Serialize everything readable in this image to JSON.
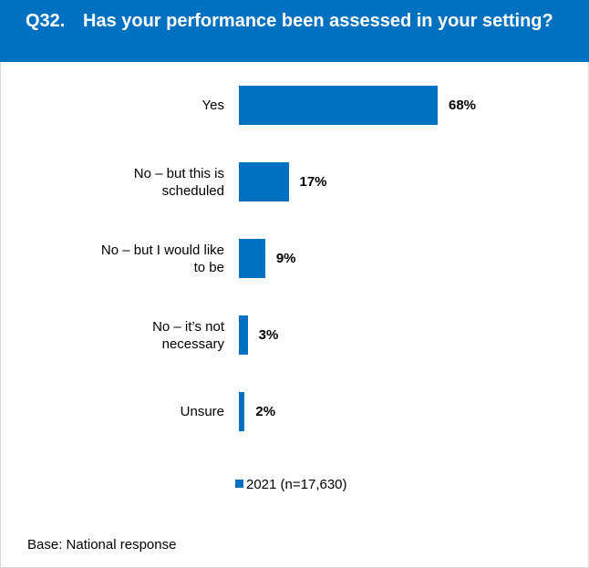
{
  "header": {
    "question_number": "Q32.",
    "question_text": "Has your performance been assessed in your setting?"
  },
  "chart_data": {
    "type": "bar",
    "orientation": "horizontal",
    "categories": [
      "Yes",
      "No – but this is scheduled",
      "No – but I would like to be",
      "No – it’s not necessary",
      "Unsure"
    ],
    "category_lines": [
      [
        "Yes"
      ],
      [
        "No – but this is",
        "scheduled"
      ],
      [
        "No – but I would like",
        "to be"
      ],
      [
        "No – it’s not",
        "necessary"
      ],
      [
        "Unsure"
      ]
    ],
    "series": [
      {
        "name": "2021 (n=17,630)",
        "values": [
          68,
          17,
          9,
          3,
          2
        ],
        "color": "#0070c0"
      }
    ],
    "data_labels": [
      "68%",
      "17%",
      "9%",
      "3%",
      "2%"
    ],
    "value_unit": "%",
    "xlim": [
      0,
      100
    ],
    "grid": false,
    "legend_position": "bottom"
  },
  "footer": {
    "base_text": "Base:   National response"
  }
}
